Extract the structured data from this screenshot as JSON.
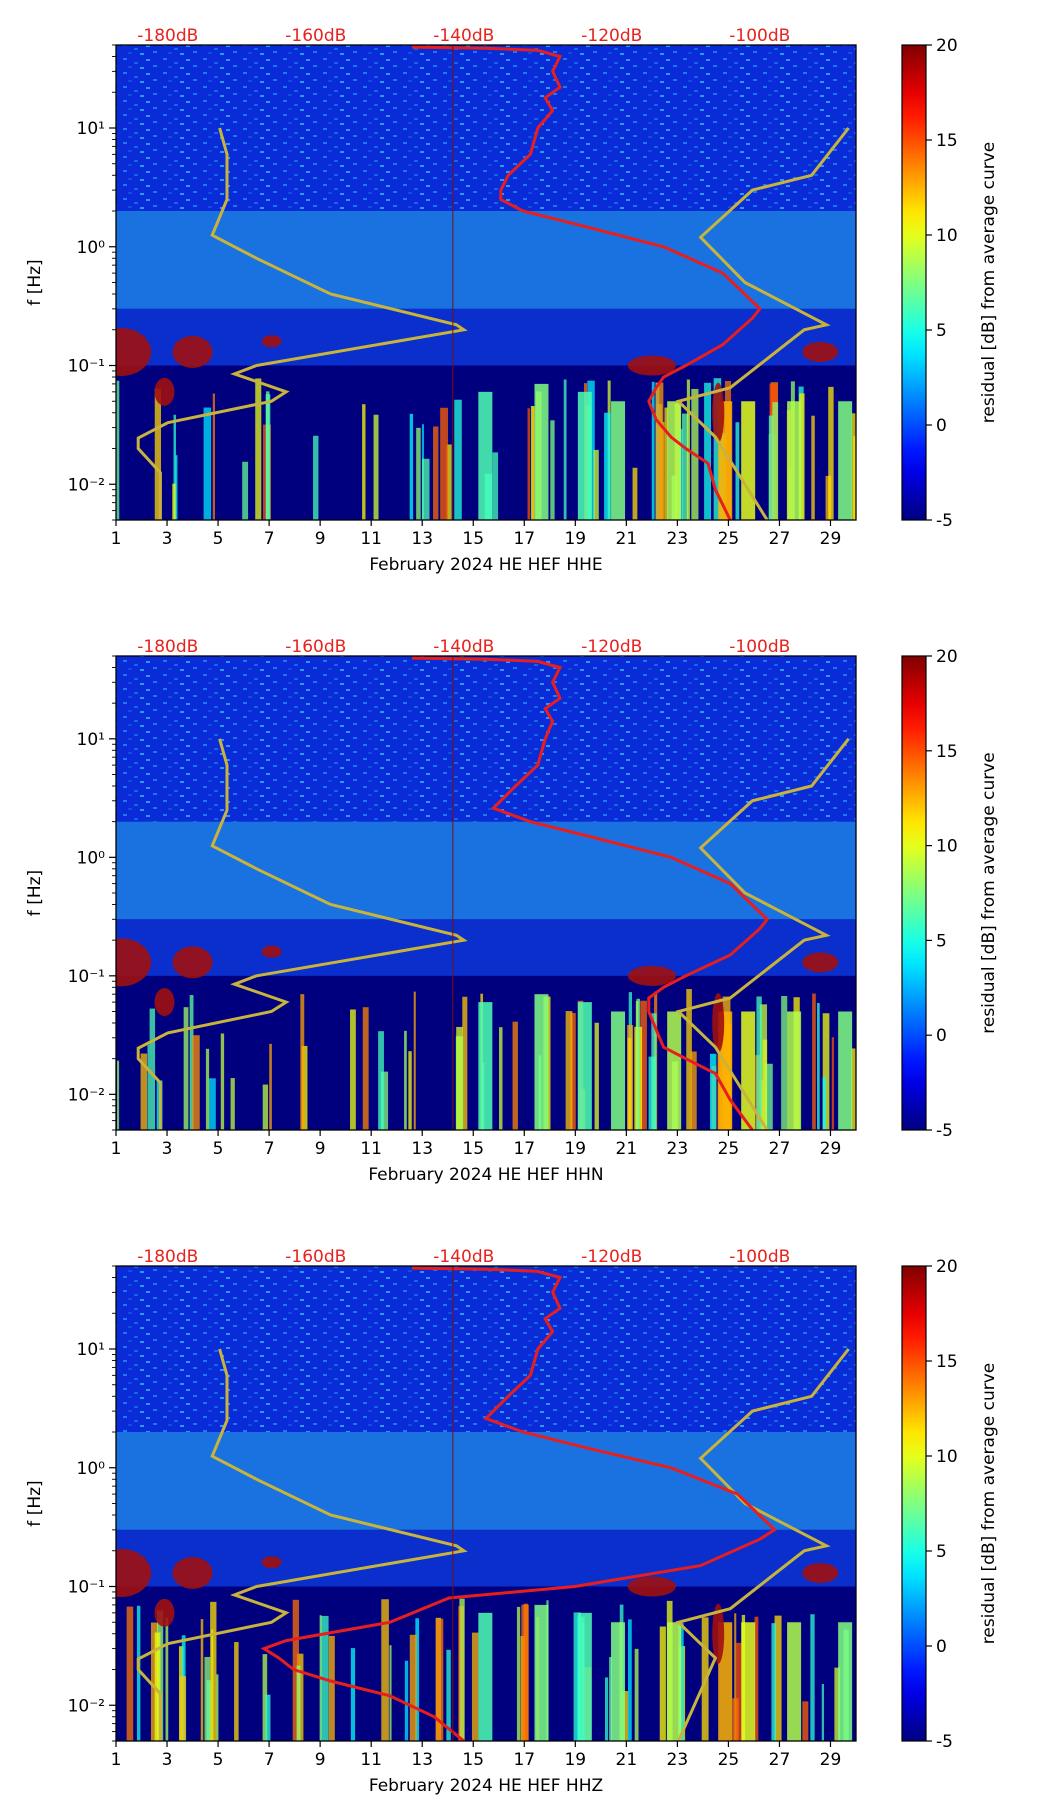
{
  "chart_data": [
    {
      "type": "heatmap",
      "component": "HHE",
      "xlabel": "February 2024 HE HEF  HHE",
      "ylabel": "f [Hz]",
      "x_ticks": [
        "1",
        "3",
        "5",
        "7",
        "9",
        "11",
        "13",
        "15",
        "17",
        "19",
        "21",
        "23",
        "25",
        "27",
        "29"
      ],
      "x_tick_values": [
        1,
        3,
        5,
        7,
        9,
        11,
        13,
        15,
        17,
        19,
        21,
        23,
        25,
        27,
        29
      ],
      "xlim": [
        1,
        30
      ],
      "y_ticks": [
        "10⁻²",
        "10⁻¹",
        "10⁰",
        "10¹"
      ],
      "y_tick_exponents": [
        -2,
        -1,
        0,
        1
      ],
      "ylim": [
        0.005,
        50
      ],
      "top_axis_labels": [
        "-180dB",
        "-160dB",
        "-140dB",
        "-120dB",
        "-100dB"
      ],
      "top_axis_values": [
        -180,
        -160,
        -140,
        -120,
        -100
      ],
      "db_axis_range": [
        -187,
        -87
      ],
      "colorbar": {
        "label": "residual [dB] from average curve",
        "min": -5,
        "max": 20,
        "ticks": [
          "-5",
          "0",
          "5",
          "10",
          "15",
          "20"
        ],
        "tick_values": [
          -5,
          0,
          5,
          10,
          15,
          20
        ]
      },
      "series": [
        {
          "name": "noise model bounds",
          "color": "#c8b43c",
          "paths": [
            [
              [
                -181,
                0.005
              ],
              [
                -181,
                0.0125
              ],
              [
                -184,
                0.02
              ],
              [
                -184,
                0.0245
              ],
              [
                -180,
                0.033
              ],
              [
                -166,
                0.05
              ],
              [
                -164,
                0.06
              ],
              [
                -171,
                0.085
              ],
              [
                -168,
                0.1
              ],
              [
                -140,
                0.2
              ],
              [
                -141,
                0.22
              ],
              [
                -158,
                0.4
              ],
              [
                -168,
                0.8
              ],
              [
                -174,
                1.25
              ],
              [
                -172,
                2.5
              ],
              [
                -172,
                6
              ],
              [
                -173,
                10
              ]
            ],
            [
              [
                -99,
                0.005
              ],
              [
                -106,
                0.025
              ],
              [
                -111,
                0.05
              ],
              [
                -104,
                0.065
              ],
              [
                -94,
                0.2
              ],
              [
                -91,
                0.22
              ],
              [
                -102,
                0.5
              ],
              [
                -108,
                1.2
              ],
              [
                -101,
                3
              ],
              [
                -93,
                4
              ],
              [
                -88,
                10
              ]
            ]
          ]
        },
        {
          "name": "average PSD",
          "color": "#e81e1e",
          "points": [
            [
              -104,
              0.005
            ],
            [
              -106,
              0.009
            ],
            [
              -107,
              0.015
            ],
            [
              -110,
              0.02
            ],
            [
              -112,
              0.025
            ],
            [
              -114,
              0.035
            ],
            [
              -115,
              0.05
            ],
            [
              -114,
              0.065
            ],
            [
              -113,
              0.08
            ],
            [
              -110,
              0.1
            ],
            [
              -105,
              0.15
            ],
            [
              -101,
              0.25
            ],
            [
              -100,
              0.3
            ],
            [
              -105,
              0.6
            ],
            [
              -113,
              1.0
            ],
            [
              -124,
              1.5
            ],
            [
              -132,
              2.0
            ],
            [
              -135,
              2.5
            ],
            [
              -135,
              3.0
            ],
            [
              -134,
              4
            ],
            [
              -131,
              6
            ],
            [
              -130,
              10
            ],
            [
              -128,
              14
            ],
            [
              -129,
              18
            ],
            [
              -127,
              22
            ],
            [
              -128,
              30
            ],
            [
              -127,
              40
            ],
            [
              -130,
              45
            ],
            [
              -137,
              47
            ],
            [
              -147,
              48
            ]
          ]
        }
      ]
    },
    {
      "type": "heatmap",
      "component": "HHN",
      "xlabel": "February 2024 HE HEF  HHN",
      "ylabel": "f [Hz]",
      "x_ticks": [
        "1",
        "3",
        "5",
        "7",
        "9",
        "11",
        "13",
        "15",
        "17",
        "19",
        "21",
        "23",
        "25",
        "27",
        "29"
      ],
      "x_tick_values": [
        1,
        3,
        5,
        7,
        9,
        11,
        13,
        15,
        17,
        19,
        21,
        23,
        25,
        27,
        29
      ],
      "xlim": [
        1,
        30
      ],
      "y_ticks": [
        "10⁻²",
        "10⁻¹",
        "10⁰",
        "10¹"
      ],
      "y_tick_exponents": [
        -2,
        -1,
        0,
        1
      ],
      "ylim": [
        0.005,
        50
      ],
      "top_axis_labels": [
        "-180dB",
        "-160dB",
        "-140dB",
        "-120dB",
        "-100dB"
      ],
      "top_axis_values": [
        -180,
        -160,
        -140,
        -120,
        -100
      ],
      "db_axis_range": [
        -187,
        -87
      ],
      "colorbar": {
        "label": "residual [dB] from average curve",
        "min": -5,
        "max": 20,
        "ticks": [
          "-5",
          "0",
          "5",
          "10",
          "15",
          "20"
        ],
        "tick_values": [
          -5,
          0,
          5,
          10,
          15,
          20
        ]
      },
      "series": [
        {
          "name": "noise model bounds",
          "color": "#c8b43c",
          "paths": [
            [
              [
                -181,
                0.005
              ],
              [
                -181,
                0.0125
              ],
              [
                -184,
                0.02
              ],
              [
                -184,
                0.0245
              ],
              [
                -180,
                0.033
              ],
              [
                -166,
                0.05
              ],
              [
                -164,
                0.06
              ],
              [
                -171,
                0.085
              ],
              [
                -168,
                0.1
              ],
              [
                -140,
                0.2
              ],
              [
                -141,
                0.22
              ],
              [
                -158,
                0.4
              ],
              [
                -168,
                0.8
              ],
              [
                -174,
                1.25
              ],
              [
                -172,
                2.5
              ],
              [
                -172,
                6
              ],
              [
                -173,
                10
              ]
            ],
            [
              [
                -99,
                0.005
              ],
              [
                -106,
                0.025
              ],
              [
                -111,
                0.05
              ],
              [
                -104,
                0.065
              ],
              [
                -94,
                0.2
              ],
              [
                -91,
                0.22
              ],
              [
                -102,
                0.5
              ],
              [
                -108,
                1.2
              ],
              [
                -101,
                3
              ],
              [
                -93,
                4
              ],
              [
                -88,
                10
              ]
            ]
          ]
        },
        {
          "name": "average PSD",
          "color": "#e81e1e",
          "points": [
            [
              -101,
              0.005
            ],
            [
              -104,
              0.009
            ],
            [
              -106,
              0.015
            ],
            [
              -110,
              0.02
            ],
            [
              -113,
              0.025
            ],
            [
              -114,
              0.035
            ],
            [
              -115,
              0.05
            ],
            [
              -115,
              0.065
            ],
            [
              -113,
              0.08
            ],
            [
              -110,
              0.1
            ],
            [
              -104,
              0.15
            ],
            [
              -100,
              0.25
            ],
            [
              -99,
              0.3
            ],
            [
              -104,
              0.6
            ],
            [
              -112,
              1.0
            ],
            [
              -123,
              1.5
            ],
            [
              -131,
              2.0
            ],
            [
              -136,
              2.6
            ],
            [
              -135,
              3.0
            ],
            [
              -133,
              4
            ],
            [
              -130,
              6
            ],
            [
              -129,
              10
            ],
            [
              -128,
              14
            ],
            [
              -129,
              18
            ],
            [
              -127,
              22
            ],
            [
              -128,
              30
            ],
            [
              -127,
              40
            ],
            [
              -130,
              45
            ],
            [
              -137,
              47
            ],
            [
              -147,
              48
            ]
          ]
        }
      ]
    },
    {
      "type": "heatmap",
      "component": "HHZ",
      "xlabel": "February 2024 HE HEF  HHZ",
      "ylabel": "f [Hz]",
      "x_ticks": [
        "1",
        "3",
        "5",
        "7",
        "9",
        "11",
        "13",
        "15",
        "17",
        "19",
        "21",
        "23",
        "25",
        "27",
        "29"
      ],
      "x_tick_values": [
        1,
        3,
        5,
        7,
        9,
        11,
        13,
        15,
        17,
        19,
        21,
        23,
        25,
        27,
        29
      ],
      "xlim": [
        1,
        30
      ],
      "y_ticks": [
        "10⁻²",
        "10⁻¹",
        "10⁰",
        "10¹"
      ],
      "y_tick_exponents": [
        -2,
        -1,
        0,
        1
      ],
      "ylim": [
        0.005,
        50
      ],
      "top_axis_labels": [
        "-180dB",
        "-160dB",
        "-140dB",
        "-120dB",
        "-100dB"
      ],
      "top_axis_values": [
        -180,
        -160,
        -140,
        -120,
        -100
      ],
      "db_axis_range": [
        -187,
        -87
      ],
      "colorbar": {
        "label": "residual [dB] from average curve",
        "min": -5,
        "max": 20,
        "ticks": [
          "-5",
          "0",
          "5",
          "10",
          "15",
          "20"
        ],
        "tick_values": [
          -5,
          0,
          5,
          10,
          15,
          20
        ]
      },
      "series": [
        {
          "name": "noise model bounds",
          "color": "#c8b43c",
          "paths": [
            [
              [
                -181,
                0.005
              ],
              [
                -181,
                0.0125
              ],
              [
                -184,
                0.02
              ],
              [
                -184,
                0.0245
              ],
              [
                -180,
                0.033
              ],
              [
                -166,
                0.05
              ],
              [
                -164,
                0.06
              ],
              [
                -171,
                0.085
              ],
              [
                -168,
                0.1
              ],
              [
                -140,
                0.2
              ],
              [
                -141,
                0.22
              ],
              [
                -158,
                0.4
              ],
              [
                -168,
                0.8
              ],
              [
                -174,
                1.25
              ],
              [
                -172,
                2.5
              ],
              [
                -172,
                6
              ],
              [
                -173,
                10
              ]
            ],
            [
              [
                -111,
                0.005
              ],
              [
                -106,
                0.025
              ],
              [
                -111,
                0.05
              ],
              [
                -104,
                0.065
              ],
              [
                -94,
                0.2
              ],
              [
                -91,
                0.22
              ],
              [
                -102,
                0.5
              ],
              [
                -108,
                1.2
              ],
              [
                -101,
                3
              ],
              [
                -93,
                4
              ],
              [
                -88,
                10
              ]
            ]
          ]
        },
        {
          "name": "average PSD",
          "color": "#e81e1e",
          "points": [
            [
              -140,
              0.005
            ],
            [
              -144,
              0.008
            ],
            [
              -150,
              0.012
            ],
            [
              -158,
              0.016
            ],
            [
              -163,
              0.02
            ],
            [
              -165,
              0.025
            ],
            [
              -167,
              0.03
            ],
            [
              -164,
              0.035
            ],
            [
              -150,
              0.05
            ],
            [
              -142,
              0.08
            ],
            [
              -125,
              0.1
            ],
            [
              -108,
              0.15
            ],
            [
              -100,
              0.25
            ],
            [
              -98,
              0.3
            ],
            [
              -103,
              0.6
            ],
            [
              -112,
              1.0
            ],
            [
              -124,
              1.5
            ],
            [
              -132,
              2.0
            ],
            [
              -137,
              2.6
            ],
            [
              -136,
              3.0
            ],
            [
              -134,
              4
            ],
            [
              -131,
              6
            ],
            [
              -130,
              10
            ],
            [
              -128,
              14
            ],
            [
              -129,
              18
            ],
            [
              -127,
              22
            ],
            [
              -128,
              30
            ],
            [
              -127,
              40
            ],
            [
              -130,
              45
            ],
            [
              -137,
              47
            ],
            [
              -147,
              48
            ]
          ]
        }
      ]
    }
  ]
}
